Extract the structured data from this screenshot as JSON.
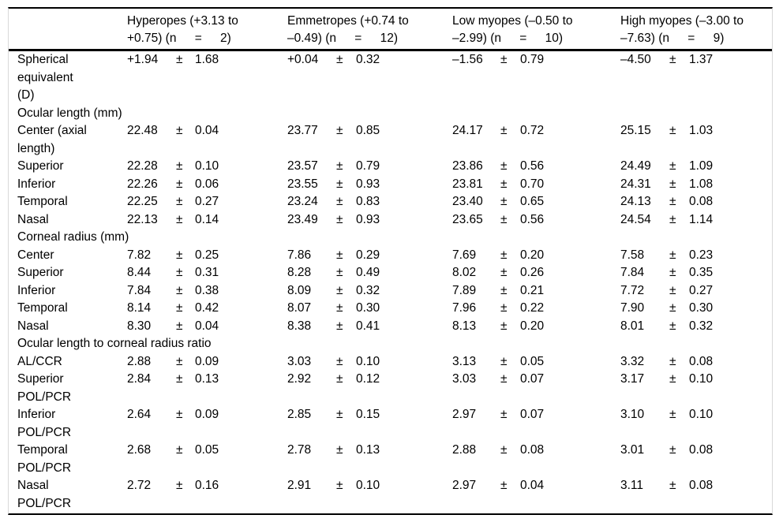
{
  "table": {
    "pm": "±",
    "columns": [
      {
        "line1": "Hyperopes (+3.13 to",
        "line2": "+0.75) (n  =  2)"
      },
      {
        "line1": "Emmetropes (+0.74 to",
        "line2": "–0.49) (n  =  12)"
      },
      {
        "line1": "Low myopes (–0.50 to",
        "line2": "–2.99) (n  =  10)"
      },
      {
        "line1": "High myopes (–3.00 to",
        "line2": "–7.63) (n  =  9)"
      }
    ],
    "rows": [
      {
        "type": "data",
        "label": [
          "Spherical",
          "equivalent",
          "(D)"
        ],
        "values": [
          [
            "+1.94",
            "1.68"
          ],
          [
            "+0.04",
            "0.32"
          ],
          [
            "–1.56",
            "0.79"
          ],
          [
            "–4.50",
            "1.37"
          ]
        ]
      },
      {
        "type": "section",
        "label": [
          "Ocular length (mm)"
        ]
      },
      {
        "type": "data",
        "label": [
          "Center (axial",
          "length)"
        ],
        "values": [
          [
            "22.48",
            "0.04"
          ],
          [
            "23.77",
            "0.85"
          ],
          [
            "24.17",
            "0.72"
          ],
          [
            "25.15",
            "1.03"
          ]
        ]
      },
      {
        "type": "data",
        "label": [
          "Superior"
        ],
        "values": [
          [
            "22.28",
            "0.10"
          ],
          [
            "23.57",
            "0.79"
          ],
          [
            "23.86",
            "0.56"
          ],
          [
            "24.49",
            "1.09"
          ]
        ]
      },
      {
        "type": "data",
        "label": [
          "Inferior"
        ],
        "values": [
          [
            "22.26",
            "0.06"
          ],
          [
            "23.55",
            "0.93"
          ],
          [
            "23.81",
            "0.70"
          ],
          [
            "24.31",
            "1.08"
          ]
        ]
      },
      {
        "type": "data",
        "label": [
          "Temporal"
        ],
        "values": [
          [
            "22.25",
            "0.27"
          ],
          [
            "23.24",
            "0.83"
          ],
          [
            "23.40",
            "0.65"
          ],
          [
            "24.13",
            "0.08"
          ]
        ]
      },
      {
        "type": "data",
        "label": [
          "Nasal"
        ],
        "values": [
          [
            "22.13",
            "0.14"
          ],
          [
            "23.49",
            "0.93"
          ],
          [
            "23.65",
            "0.56"
          ],
          [
            "24.54",
            "1.14"
          ]
        ]
      },
      {
        "type": "section",
        "label": [
          "Corneal radius (mm)"
        ]
      },
      {
        "type": "data",
        "label": [
          "Center"
        ],
        "values": [
          [
            "7.82",
            "0.25"
          ],
          [
            "7.86",
            "0.29"
          ],
          [
            "7.69",
            "0.20"
          ],
          [
            "7.58",
            "0.23"
          ]
        ]
      },
      {
        "type": "data",
        "label": [
          "Superior"
        ],
        "values": [
          [
            "8.44",
            "0.31"
          ],
          [
            "8.28",
            "0.49"
          ],
          [
            "8.02",
            "0.26"
          ],
          [
            "7.84",
            "0.35"
          ]
        ]
      },
      {
        "type": "data",
        "label": [
          "Inferior"
        ],
        "values": [
          [
            "7.84",
            "0.38"
          ],
          [
            "8.09",
            "0.32"
          ],
          [
            "7.89",
            "0.21"
          ],
          [
            "7.72",
            "0.27"
          ]
        ]
      },
      {
        "type": "data",
        "label": [
          "Temporal"
        ],
        "values": [
          [
            "8.14",
            "0.42"
          ],
          [
            "8.07",
            "0.30"
          ],
          [
            "7.96",
            "0.22"
          ],
          [
            "7.90",
            "0.30"
          ]
        ]
      },
      {
        "type": "data",
        "label": [
          "Nasal"
        ],
        "values": [
          [
            "8.30",
            "0.04"
          ],
          [
            "8.38",
            "0.41"
          ],
          [
            "8.13",
            "0.20"
          ],
          [
            "8.01",
            "0.32"
          ]
        ]
      },
      {
        "type": "section",
        "label": [
          "Ocular length to corneal radius ratio"
        ]
      },
      {
        "type": "data",
        "label": [
          "AL/CCR"
        ],
        "values": [
          [
            "2.88",
            "0.09"
          ],
          [
            "3.03",
            "0.10"
          ],
          [
            "3.13",
            "0.05"
          ],
          [
            "3.32",
            "0.08"
          ]
        ]
      },
      {
        "type": "data",
        "label": [
          "Superior",
          "POL/PCR"
        ],
        "values": [
          [
            "2.84",
            "0.13"
          ],
          [
            "2.92",
            "0.12"
          ],
          [
            "3.03",
            "0.07"
          ],
          [
            "3.17",
            "0.10"
          ]
        ]
      },
      {
        "type": "data",
        "label": [
          "Inferior",
          "POL/PCR"
        ],
        "values": [
          [
            "2.64",
            "0.09"
          ],
          [
            "2.85",
            "0.15"
          ],
          [
            "2.97",
            "0.07"
          ],
          [
            "3.10",
            "0.10"
          ]
        ]
      },
      {
        "type": "data",
        "label": [
          "Temporal",
          "POL/PCR"
        ],
        "values": [
          [
            "2.68",
            "0.05"
          ],
          [
            "2.78",
            "0.13"
          ],
          [
            "2.88",
            "0.08"
          ],
          [
            "3.01",
            "0.08"
          ]
        ]
      },
      {
        "type": "data",
        "label": [
          "Nasal",
          "POL/PCR"
        ],
        "values": [
          [
            "2.72",
            "0.16"
          ],
          [
            "2.91",
            "0.10"
          ],
          [
            "2.97",
            "0.04"
          ],
          [
            "3.11",
            "0.08"
          ]
        ]
      }
    ],
    "colors": {
      "rule": "#000000",
      "figure_border": "#d9d9d9",
      "text": "#000000",
      "background": "#ffffff"
    }
  }
}
